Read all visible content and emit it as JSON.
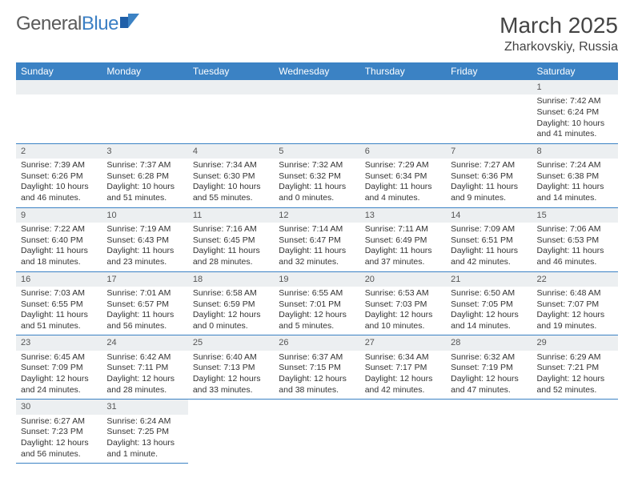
{
  "logo": {
    "text1": "General",
    "text2": "Blue"
  },
  "title": "March 2025",
  "location": "Zharkovskiy, Russia",
  "colors": {
    "header_bg": "#3b82c4",
    "header_fg": "#ffffff",
    "daynum_bg": "#eceff1",
    "border": "#3b82c4",
    "text": "#333333",
    "logo_gray": "#5a5a5a",
    "logo_blue": "#3b7fc4"
  },
  "weekdays": [
    "Sunday",
    "Monday",
    "Tuesday",
    "Wednesday",
    "Thursday",
    "Friday",
    "Saturday"
  ],
  "weeks": [
    [
      null,
      null,
      null,
      null,
      null,
      null,
      {
        "d": "1",
        "sr": "Sunrise: 7:42 AM",
        "ss": "Sunset: 6:24 PM",
        "dl": "Daylight: 10 hours and 41 minutes."
      }
    ],
    [
      {
        "d": "2",
        "sr": "Sunrise: 7:39 AM",
        "ss": "Sunset: 6:26 PM",
        "dl": "Daylight: 10 hours and 46 minutes."
      },
      {
        "d": "3",
        "sr": "Sunrise: 7:37 AM",
        "ss": "Sunset: 6:28 PM",
        "dl": "Daylight: 10 hours and 51 minutes."
      },
      {
        "d": "4",
        "sr": "Sunrise: 7:34 AM",
        "ss": "Sunset: 6:30 PM",
        "dl": "Daylight: 10 hours and 55 minutes."
      },
      {
        "d": "5",
        "sr": "Sunrise: 7:32 AM",
        "ss": "Sunset: 6:32 PM",
        "dl": "Daylight: 11 hours and 0 minutes."
      },
      {
        "d": "6",
        "sr": "Sunrise: 7:29 AM",
        "ss": "Sunset: 6:34 PM",
        "dl": "Daylight: 11 hours and 4 minutes."
      },
      {
        "d": "7",
        "sr": "Sunrise: 7:27 AM",
        "ss": "Sunset: 6:36 PM",
        "dl": "Daylight: 11 hours and 9 minutes."
      },
      {
        "d": "8",
        "sr": "Sunrise: 7:24 AM",
        "ss": "Sunset: 6:38 PM",
        "dl": "Daylight: 11 hours and 14 minutes."
      }
    ],
    [
      {
        "d": "9",
        "sr": "Sunrise: 7:22 AM",
        "ss": "Sunset: 6:40 PM",
        "dl": "Daylight: 11 hours and 18 minutes."
      },
      {
        "d": "10",
        "sr": "Sunrise: 7:19 AM",
        "ss": "Sunset: 6:43 PM",
        "dl": "Daylight: 11 hours and 23 minutes."
      },
      {
        "d": "11",
        "sr": "Sunrise: 7:16 AM",
        "ss": "Sunset: 6:45 PM",
        "dl": "Daylight: 11 hours and 28 minutes."
      },
      {
        "d": "12",
        "sr": "Sunrise: 7:14 AM",
        "ss": "Sunset: 6:47 PM",
        "dl": "Daylight: 11 hours and 32 minutes."
      },
      {
        "d": "13",
        "sr": "Sunrise: 7:11 AM",
        "ss": "Sunset: 6:49 PM",
        "dl": "Daylight: 11 hours and 37 minutes."
      },
      {
        "d": "14",
        "sr": "Sunrise: 7:09 AM",
        "ss": "Sunset: 6:51 PM",
        "dl": "Daylight: 11 hours and 42 minutes."
      },
      {
        "d": "15",
        "sr": "Sunrise: 7:06 AM",
        "ss": "Sunset: 6:53 PM",
        "dl": "Daylight: 11 hours and 46 minutes."
      }
    ],
    [
      {
        "d": "16",
        "sr": "Sunrise: 7:03 AM",
        "ss": "Sunset: 6:55 PM",
        "dl": "Daylight: 11 hours and 51 minutes."
      },
      {
        "d": "17",
        "sr": "Sunrise: 7:01 AM",
        "ss": "Sunset: 6:57 PM",
        "dl": "Daylight: 11 hours and 56 minutes."
      },
      {
        "d": "18",
        "sr": "Sunrise: 6:58 AM",
        "ss": "Sunset: 6:59 PM",
        "dl": "Daylight: 12 hours and 0 minutes."
      },
      {
        "d": "19",
        "sr": "Sunrise: 6:55 AM",
        "ss": "Sunset: 7:01 PM",
        "dl": "Daylight: 12 hours and 5 minutes."
      },
      {
        "d": "20",
        "sr": "Sunrise: 6:53 AM",
        "ss": "Sunset: 7:03 PM",
        "dl": "Daylight: 12 hours and 10 minutes."
      },
      {
        "d": "21",
        "sr": "Sunrise: 6:50 AM",
        "ss": "Sunset: 7:05 PM",
        "dl": "Daylight: 12 hours and 14 minutes."
      },
      {
        "d": "22",
        "sr": "Sunrise: 6:48 AM",
        "ss": "Sunset: 7:07 PM",
        "dl": "Daylight: 12 hours and 19 minutes."
      }
    ],
    [
      {
        "d": "23",
        "sr": "Sunrise: 6:45 AM",
        "ss": "Sunset: 7:09 PM",
        "dl": "Daylight: 12 hours and 24 minutes."
      },
      {
        "d": "24",
        "sr": "Sunrise: 6:42 AM",
        "ss": "Sunset: 7:11 PM",
        "dl": "Daylight: 12 hours and 28 minutes."
      },
      {
        "d": "25",
        "sr": "Sunrise: 6:40 AM",
        "ss": "Sunset: 7:13 PM",
        "dl": "Daylight: 12 hours and 33 minutes."
      },
      {
        "d": "26",
        "sr": "Sunrise: 6:37 AM",
        "ss": "Sunset: 7:15 PM",
        "dl": "Daylight: 12 hours and 38 minutes."
      },
      {
        "d": "27",
        "sr": "Sunrise: 6:34 AM",
        "ss": "Sunset: 7:17 PM",
        "dl": "Daylight: 12 hours and 42 minutes."
      },
      {
        "d": "28",
        "sr": "Sunrise: 6:32 AM",
        "ss": "Sunset: 7:19 PM",
        "dl": "Daylight: 12 hours and 47 minutes."
      },
      {
        "d": "29",
        "sr": "Sunrise: 6:29 AM",
        "ss": "Sunset: 7:21 PM",
        "dl": "Daylight: 12 hours and 52 minutes."
      }
    ],
    [
      {
        "d": "30",
        "sr": "Sunrise: 6:27 AM",
        "ss": "Sunset: 7:23 PM",
        "dl": "Daylight: 12 hours and 56 minutes."
      },
      {
        "d": "31",
        "sr": "Sunrise: 6:24 AM",
        "ss": "Sunset: 7:25 PM",
        "dl": "Daylight: 13 hours and 1 minute."
      },
      null,
      null,
      null,
      null,
      null
    ]
  ]
}
